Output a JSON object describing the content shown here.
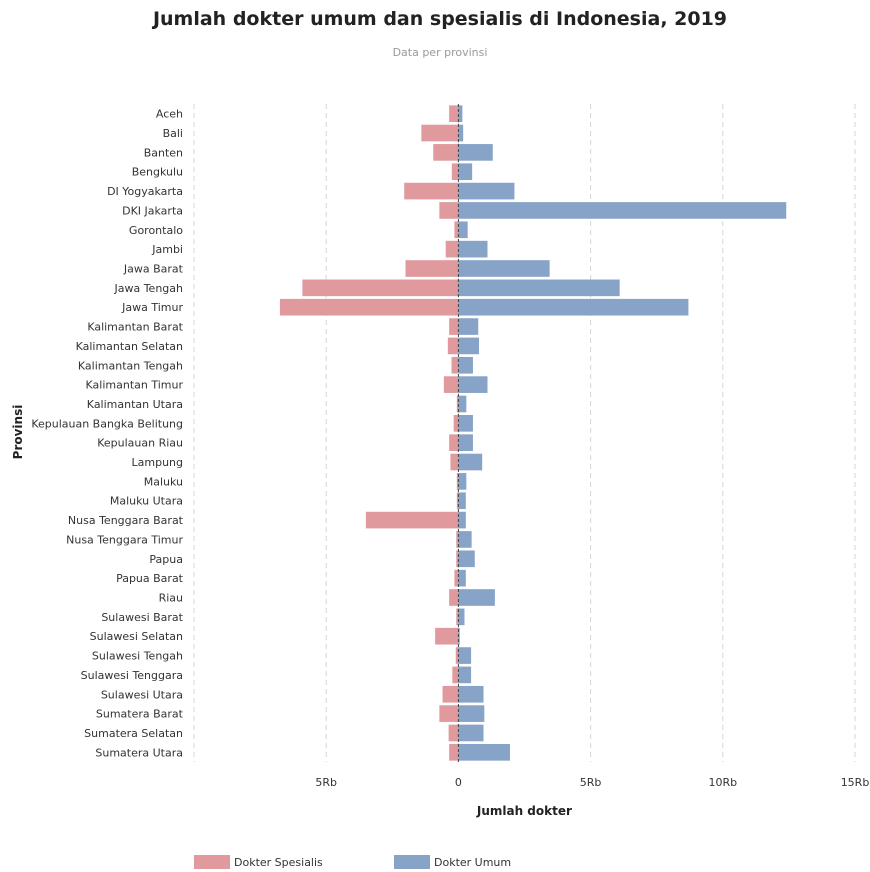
{
  "chart_data": {
    "type": "bar",
    "title": "Jumlah dokter umum dan spesialis di Indonesia, 2019",
    "subtitle": "Data per provinsi",
    "xlabel": "Jumlah dokter",
    "ylabel": "Provinsi",
    "orientation": "horizontal-diverging",
    "xlim": [
      -10000,
      15000
    ],
    "xticks": [
      {
        "value": -5000,
        "label": "5Rb"
      },
      {
        "value": 0,
        "label": "0"
      },
      {
        "value": 5000,
        "label": "5Rb"
      },
      {
        "value": 10000,
        "label": "10Rb"
      },
      {
        "value": 15000,
        "label": "15Rb"
      }
    ],
    "grid": true,
    "legend_position": "bottom-left",
    "categories": [
      "Aceh",
      "Bali",
      "Banten",
      "Bengkulu",
      "DI Yogyakarta",
      "DKI Jakarta",
      "Gorontalo",
      "Jambi",
      "Jawa Barat",
      "Jawa Tengah",
      "Jawa Timur",
      "Kalimantan Barat",
      "Kalimantan Selatan",
      "Kalimantan Tengah",
      "Kalimantan Timur",
      "Kalimantan Utara",
      "Kepulauan Bangka Belitung",
      "Kepulauan Riau",
      "Lampung",
      "Maluku",
      "Maluku Utara",
      "Nusa Tenggara Barat",
      "Nusa Tenggara Timur",
      "Papua",
      "Papua Barat",
      "Riau",
      "Sulawesi Barat",
      "Sulawesi Selatan",
      "Sulawesi Tengah",
      "Sulawesi Tenggara",
      "Sulawesi Utara",
      "Sumatera Barat",
      "Sumatera Selatan",
      "Sumatera Utara"
    ],
    "series": [
      {
        "name": "Dokter Spesialis",
        "color": "#e0999c",
        "values": [
          350,
          1400,
          950,
          250,
          2050,
          720,
          150,
          480,
          2000,
          5900,
          6750,
          350,
          400,
          260,
          550,
          60,
          180,
          350,
          300,
          60,
          60,
          3500,
          80,
          80,
          150,
          350,
          80,
          880,
          100,
          230,
          600,
          720,
          370,
          350
        ]
      },
      {
        "name": "Dokter Umum",
        "color": "#87a3c7",
        "values": [
          150,
          180,
          1300,
          520,
          2120,
          12400,
          350,
          1100,
          3450,
          6100,
          8700,
          750,
          780,
          550,
          1100,
          300,
          550,
          550,
          900,
          300,
          280,
          280,
          500,
          620,
          280,
          1380,
          230,
          50,
          480,
          480,
          950,
          980,
          950,
          1950
        ]
      }
    ]
  }
}
